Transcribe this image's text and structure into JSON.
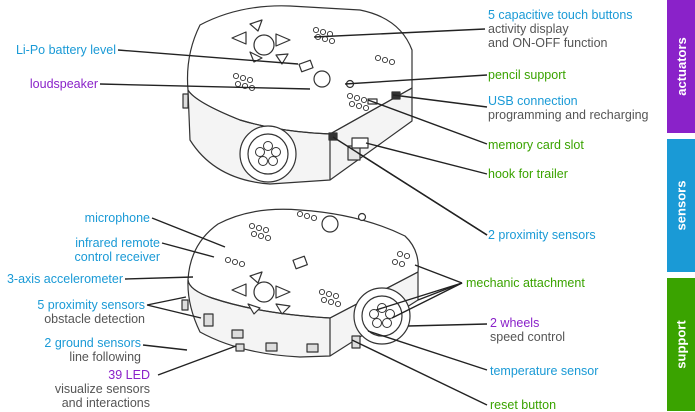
{
  "tabs": [
    {
      "label": "actuators",
      "color": "#8a22c9"
    },
    {
      "label": "sensors",
      "color": "#1a9ad6"
    },
    {
      "label": "support",
      "color": "#3aa300"
    }
  ],
  "top_right": [
    {
      "title": "5 capacitive touch buttons",
      "sub1": "activity display",
      "sub2": "and ON-OFF function"
    },
    {
      "title": "pencil support"
    },
    {
      "title": "USB connection",
      "sub1": "programming and recharging"
    },
    {
      "title": "memory card slot"
    },
    {
      "title": "hook for trailer"
    },
    {
      "title": "2 proximity sensors"
    }
  ],
  "top_left": [
    {
      "title": "Li-Po battery level"
    },
    {
      "title": "loudspeaker"
    }
  ],
  "bottom_left": [
    {
      "title": "microphone"
    },
    {
      "title": "infrared remote",
      "sub1": "control receiver"
    },
    {
      "title": "3-axis accelerometer"
    },
    {
      "title": "5 proximity sensors",
      "sub1": "obstacle detection"
    },
    {
      "title": "2 ground sensors",
      "sub1": "line following"
    },
    {
      "title": "39 LED",
      "sub1": "visualize sensors",
      "sub2": "and interactions"
    }
  ],
  "bottom_right": [
    {
      "title": "mechanic attachment"
    },
    {
      "title": "2 wheels",
      "sub1": "speed control"
    },
    {
      "title": "temperature sensor"
    },
    {
      "title": "reset button"
    }
  ]
}
